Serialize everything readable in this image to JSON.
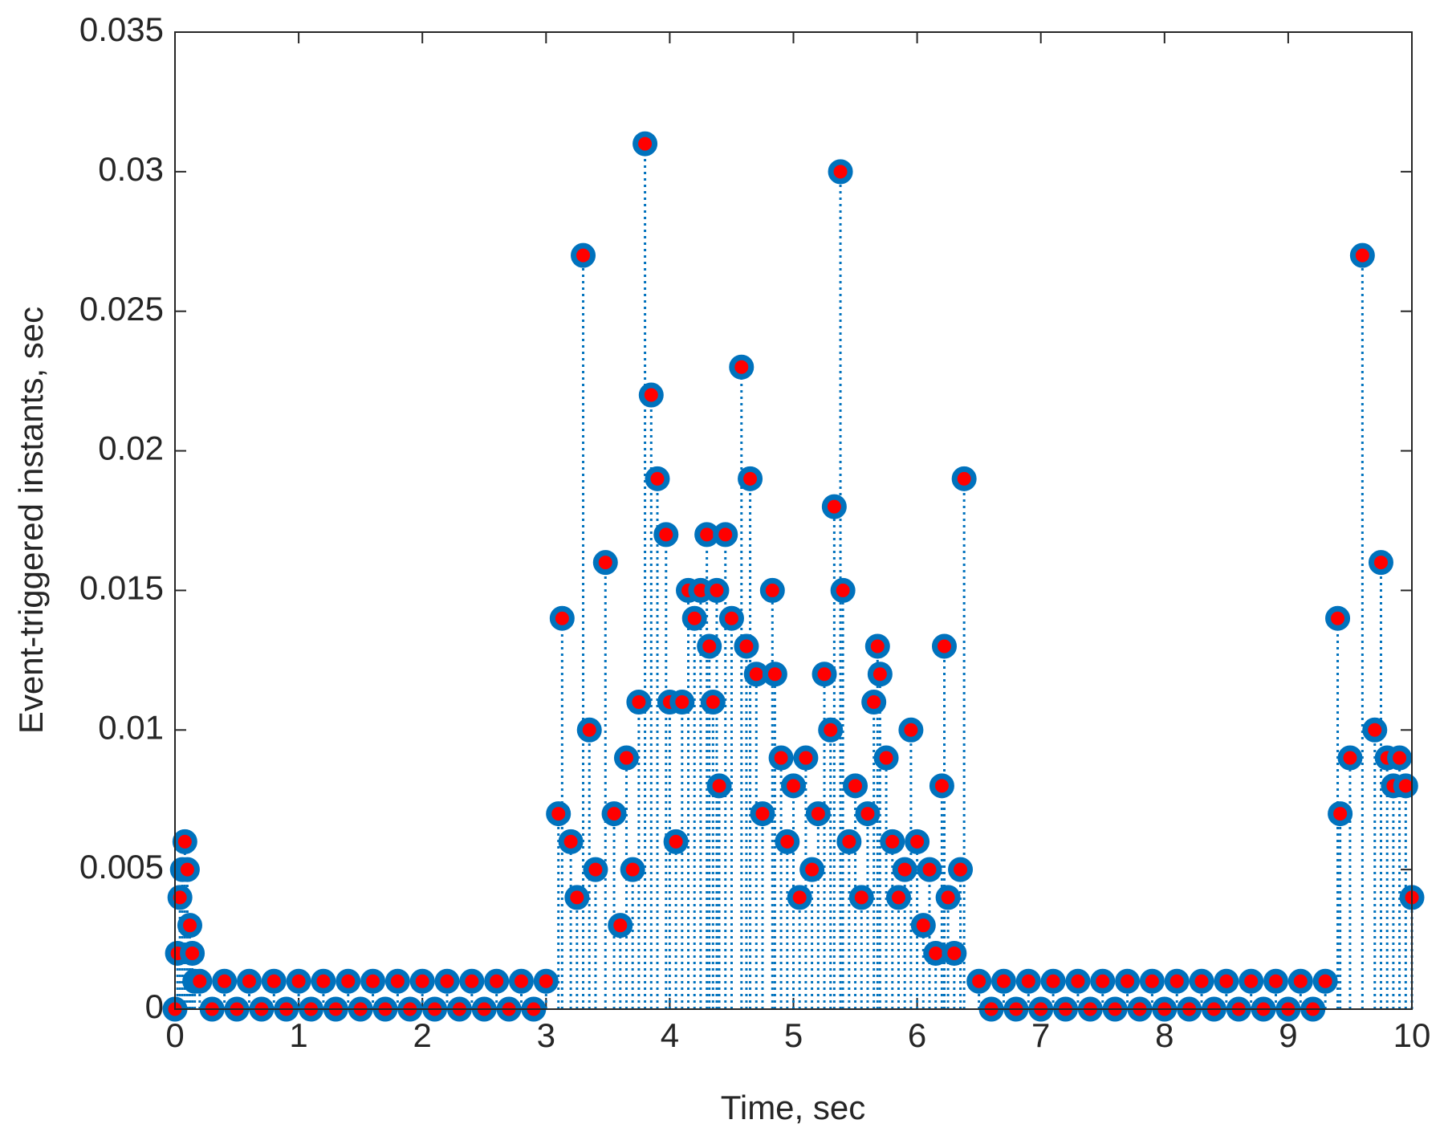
{
  "chart_data": {
    "type": "stem",
    "xlabel": "Time, sec",
    "ylabel": "Event-triggered instants, sec",
    "color": "#0072bd",
    "marker_face_color": "#ff0000",
    "xlim": [
      0,
      10
    ],
    "ylim": [
      0,
      0.035
    ],
    "xticks": [
      0,
      1,
      2,
      3,
      4,
      5,
      6,
      7,
      8,
      9,
      10
    ],
    "yticks": [
      0,
      0.005,
      0.01,
      0.015,
      0.02,
      0.025,
      0.03,
      0.035
    ],
    "x": [
      0,
      0.02,
      0.04,
      0.06,
      0.08,
      0.1,
      0.12,
      0.14,
      0.16,
      0.2,
      0.3,
      0.4,
      0.5,
      0.6,
      0.7,
      0.8,
      0.9,
      1.0,
      1.1,
      1.2,
      1.3,
      1.4,
      1.5,
      1.6,
      1.7,
      1.8,
      1.9,
      2.0,
      2.1,
      2.2,
      2.3,
      2.4,
      2.5,
      2.6,
      2.7,
      2.8,
      2.9,
      3.0,
      3.1,
      3.13,
      3.2,
      3.25,
      3.3,
      3.35,
      3.4,
      3.48,
      3.55,
      3.6,
      3.65,
      3.7,
      3.75,
      3.8,
      3.85,
      3.9,
      3.97,
      4.0,
      4.05,
      4.1,
      4.15,
      4.2,
      4.25,
      4.3,
      4.32,
      4.35,
      4.38,
      4.4,
      4.45,
      4.5,
      4.58,
      4.62,
      4.65,
      4.7,
      4.75,
      4.83,
      4.85,
      4.9,
      4.95,
      5.0,
      5.05,
      5.1,
      5.15,
      5.2,
      5.25,
      5.3,
      5.33,
      5.38,
      5.4,
      5.45,
      5.5,
      5.55,
      5.6,
      5.65,
      5.68,
      5.7,
      5.75,
      5.8,
      5.85,
      5.9,
      5.95,
      6.0,
      6.05,
      6.1,
      6.15,
      6.2,
      6.22,
      6.25,
      6.3,
      6.35,
      6.38,
      6.5,
      6.6,
      6.7,
      6.8,
      6.9,
      7.0,
      7.1,
      7.2,
      7.3,
      7.4,
      7.5,
      7.6,
      7.7,
      7.8,
      7.9,
      8.0,
      8.1,
      8.2,
      8.3,
      8.4,
      8.5,
      8.6,
      8.7,
      8.8,
      8.9,
      9.0,
      9.1,
      9.2,
      9.3,
      9.4,
      9.42,
      9.5,
      9.6,
      9.7,
      9.75,
      9.8,
      9.85,
      9.9,
      9.95,
      10
    ],
    "values": [
      0,
      0.002,
      0.004,
      0.005,
      0.006,
      0.005,
      0.003,
      0.002,
      0.001,
      0.001,
      0,
      0.001,
      0,
      0.001,
      0,
      0.001,
      0,
      0.001,
      0,
      0.001,
      0,
      0.001,
      0,
      0.001,
      0,
      0.001,
      0,
      0.001,
      0,
      0.001,
      0,
      0.001,
      0,
      0.001,
      0,
      0.001,
      0,
      0.001,
      0.007,
      0.014,
      0.006,
      0.004,
      0.027,
      0.01,
      0.005,
      0.016,
      0.007,
      0.003,
      0.009,
      0.005,
      0.011,
      0.031,
      0.022,
      0.019,
      0.017,
      0.011,
      0.006,
      0.011,
      0.015,
      0.014,
      0.015,
      0.017,
      0.013,
      0.011,
      0.015,
      0.008,
      0.017,
      0.014,
      0.023,
      0.013,
      0.019,
      0.012,
      0.007,
      0.015,
      0.012,
      0.009,
      0.006,
      0.008,
      0.004,
      0.009,
      0.005,
      0.007,
      0.012,
      0.01,
      0.018,
      0.03,
      0.015,
      0.006,
      0.008,
      0.004,
      0.007,
      0.011,
      0.013,
      0.012,
      0.009,
      0.006,
      0.004,
      0.005,
      0.01,
      0.006,
      0.003,
      0.005,
      0.002,
      0.008,
      0.013,
      0.004,
      0.002,
      0.005,
      0.019,
      0.001,
      0,
      0.001,
      0,
      0.001,
      0,
      0.001,
      0,
      0.001,
      0,
      0.001,
      0,
      0.001,
      0,
      0.001,
      0,
      0.001,
      0,
      0.001,
      0,
      0.001,
      0,
      0.001,
      0,
      0.001,
      0,
      0.001,
      0,
      0.001,
      0.014,
      0.007,
      0.009,
      0.027,
      0.01,
      0.016,
      0.009,
      0.008,
      0.009,
      0.008,
      0.004
    ]
  }
}
